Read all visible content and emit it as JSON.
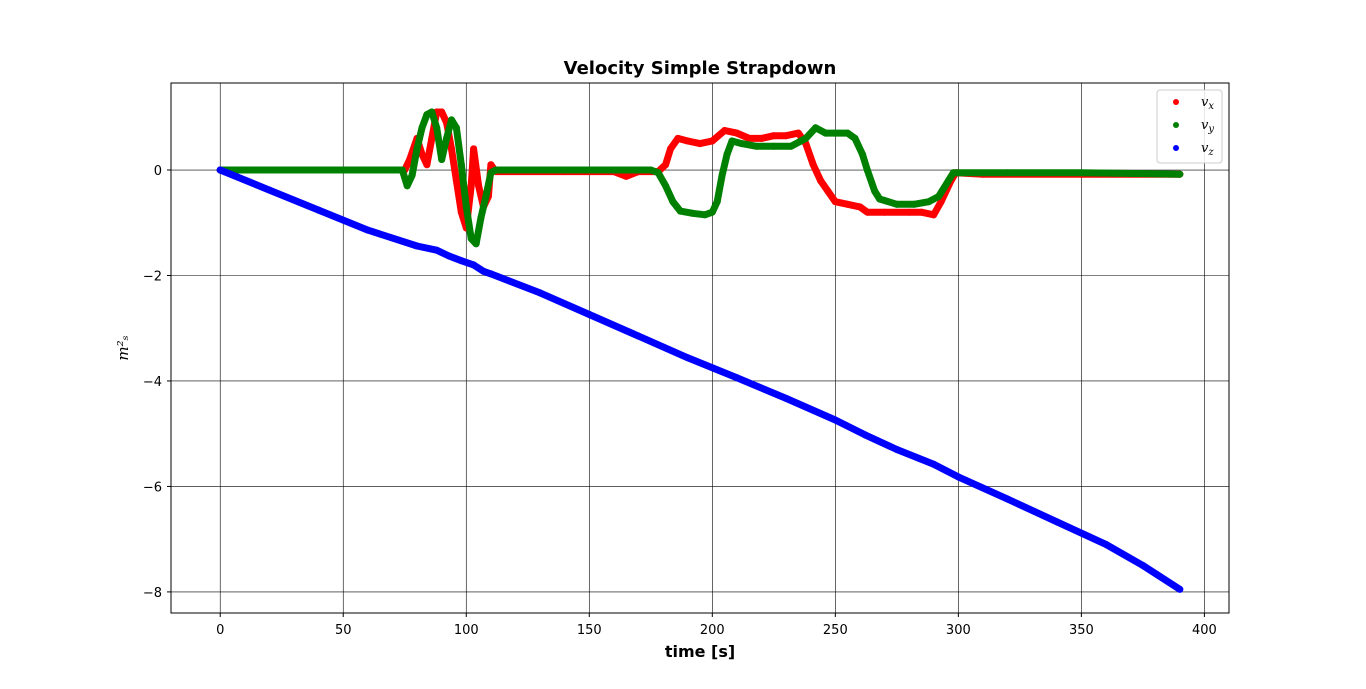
{
  "chart_data": {
    "type": "scatter",
    "title": "Velocity Simple Strapdown",
    "xlabel": "time [s]",
    "ylabel": "m²ₛ",
    "xlim": [
      -20,
      410
    ],
    "ylim": [
      -8.4,
      1.65
    ],
    "xticks": [
      0,
      50,
      100,
      150,
      200,
      250,
      300,
      350,
      400
    ],
    "yticks": [
      0,
      -2,
      -4,
      -6,
      -8
    ],
    "grid": true,
    "legend_position": "top-right",
    "series": [
      {
        "name": "vx",
        "color": "#ff0000",
        "points": [
          [
            0,
            0
          ],
          [
            75,
            0
          ],
          [
            77,
            0.2
          ],
          [
            80,
            0.6
          ],
          [
            82,
            0.3
          ],
          [
            84,
            0.1
          ],
          [
            86,
            0.6
          ],
          [
            88,
            1.1
          ],
          [
            90,
            1.1
          ],
          [
            92,
            0.9
          ],
          [
            94,
            0.4
          ],
          [
            96,
            -0.2
          ],
          [
            98,
            -0.8
          ],
          [
            100,
            -1.1
          ],
          [
            102,
            -0.3
          ],
          [
            103,
            0.4
          ],
          [
            105,
            -0.3
          ],
          [
            107,
            -0.7
          ],
          [
            109,
            -0.5
          ],
          [
            110,
            0.1
          ],
          [
            112,
            -0.03
          ],
          [
            140,
            -0.03
          ],
          [
            160,
            -0.03
          ],
          [
            165,
            -0.12
          ],
          [
            170,
            -0.03
          ],
          [
            178,
            -0.03
          ],
          [
            181,
            0.1
          ],
          [
            183,
            0.4
          ],
          [
            186,
            0.6
          ],
          [
            190,
            0.55
          ],
          [
            195,
            0.5
          ],
          [
            200,
            0.55
          ],
          [
            205,
            0.75
          ],
          [
            210,
            0.7
          ],
          [
            215,
            0.6
          ],
          [
            220,
            0.6
          ],
          [
            225,
            0.65
          ],
          [
            230,
            0.65
          ],
          [
            235,
            0.7
          ],
          [
            238,
            0.5
          ],
          [
            241,
            0.1
          ],
          [
            244,
            -0.2
          ],
          [
            247,
            -0.4
          ],
          [
            250,
            -0.6
          ],
          [
            255,
            -0.65
          ],
          [
            260,
            -0.7
          ],
          [
            263,
            -0.8
          ],
          [
            270,
            -0.8
          ],
          [
            280,
            -0.8
          ],
          [
            285,
            -0.8
          ],
          [
            290,
            -0.85
          ],
          [
            293,
            -0.6
          ],
          [
            297,
            -0.2
          ],
          [
            299,
            -0.05
          ],
          [
            310,
            -0.08
          ],
          [
            350,
            -0.08
          ],
          [
            390,
            -0.08
          ]
        ]
      },
      {
        "name": "vy",
        "color": "#008000",
        "points": [
          [
            0,
            0
          ],
          [
            74,
            0
          ],
          [
            76,
            -0.3
          ],
          [
            78,
            -0.1
          ],
          [
            80,
            0.4
          ],
          [
            82,
            0.8
          ],
          [
            84,
            1.05
          ],
          [
            86,
            1.1
          ],
          [
            88,
            0.8
          ],
          [
            90,
            0.2
          ],
          [
            92,
            0.6
          ],
          [
            94,
            0.95
          ],
          [
            96,
            0.8
          ],
          [
            98,
            0.1
          ],
          [
            100,
            -0.7
          ],
          [
            102,
            -1.3
          ],
          [
            104,
            -1.4
          ],
          [
            106,
            -0.9
          ],
          [
            108,
            -0.5
          ],
          [
            110,
            -0.05
          ],
          [
            112,
            0
          ],
          [
            140,
            0
          ],
          [
            160,
            0
          ],
          [
            175,
            0
          ],
          [
            178,
            -0.05
          ],
          [
            181,
            -0.3
          ],
          [
            184,
            -0.6
          ],
          [
            187,
            -0.78
          ],
          [
            192,
            -0.82
          ],
          [
            197,
            -0.85
          ],
          [
            200,
            -0.8
          ],
          [
            202,
            -0.6
          ],
          [
            204,
            -0.1
          ],
          [
            206,
            0.3
          ],
          [
            208,
            0.55
          ],
          [
            212,
            0.5
          ],
          [
            218,
            0.45
          ],
          [
            225,
            0.45
          ],
          [
            232,
            0.45
          ],
          [
            238,
            0.6
          ],
          [
            242,
            0.8
          ],
          [
            246,
            0.7
          ],
          [
            250,
            0.7
          ],
          [
            255,
            0.7
          ],
          [
            258,
            0.6
          ],
          [
            261,
            0.3
          ],
          [
            263,
            0
          ],
          [
            266,
            -0.4
          ],
          [
            268,
            -0.55
          ],
          [
            275,
            -0.65
          ],
          [
            282,
            -0.65
          ],
          [
            288,
            -0.6
          ],
          [
            292,
            -0.5
          ],
          [
            296,
            -0.2
          ],
          [
            298,
            -0.05
          ],
          [
            320,
            -0.05
          ],
          [
            350,
            -0.05
          ],
          [
            390,
            -0.08
          ]
        ]
      },
      {
        "name": "vz",
        "color": "#0000ff",
        "points": [
          [
            0,
            0
          ],
          [
            20,
            -0.38
          ],
          [
            40,
            -0.76
          ],
          [
            60,
            -1.14
          ],
          [
            80,
            -1.44
          ],
          [
            88,
            -1.52
          ],
          [
            93,
            -1.63
          ],
          [
            98,
            -1.72
          ],
          [
            103,
            -1.8
          ],
          [
            107,
            -1.92
          ],
          [
            110,
            -1.97
          ],
          [
            130,
            -2.33
          ],
          [
            150,
            -2.74
          ],
          [
            170,
            -3.15
          ],
          [
            190,
            -3.56
          ],
          [
            210,
            -3.94
          ],
          [
            230,
            -4.33
          ],
          [
            250,
            -4.74
          ],
          [
            262,
            -5.02
          ],
          [
            275,
            -5.3
          ],
          [
            290,
            -5.58
          ],
          [
            300,
            -5.82
          ],
          [
            320,
            -6.24
          ],
          [
            340,
            -6.67
          ],
          [
            360,
            -7.1
          ],
          [
            375,
            -7.5
          ],
          [
            390,
            -7.95
          ]
        ]
      }
    ]
  }
}
